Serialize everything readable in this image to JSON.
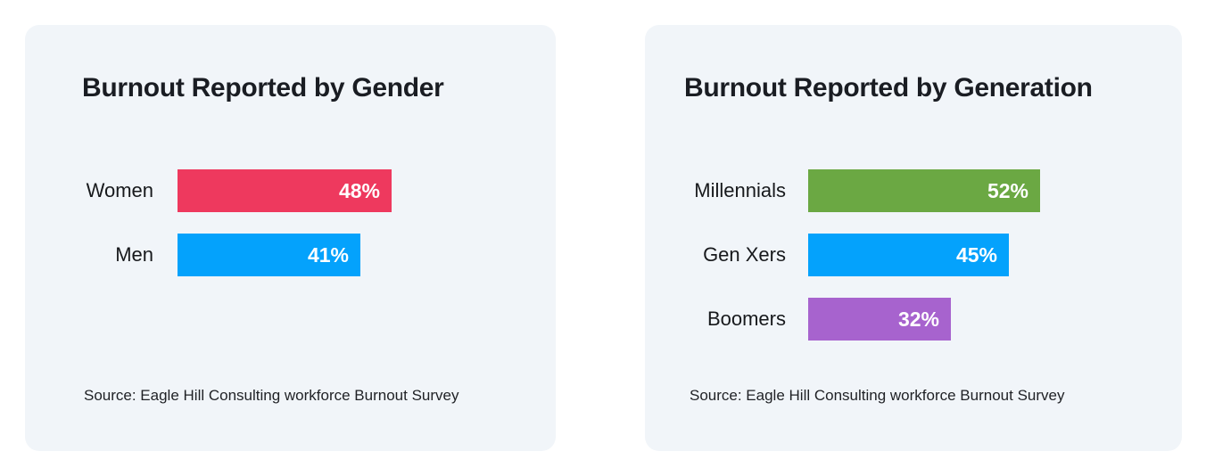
{
  "page": {
    "background": "#FFFFFF",
    "card_background": "#F1F5F9",
    "title_color": "#1A1D23",
    "label_color": "#17191C",
    "value_text_color": "#FFFFFF"
  },
  "chart_data": [
    {
      "type": "bar",
      "orientation": "horizontal",
      "title": "Burnout Reported by Gender",
      "categories": [
        "Women",
        "Men"
      ],
      "values": [
        48,
        41
      ],
      "value_labels": [
        "48%",
        "41%"
      ],
      "bar_colors": [
        "#EE395E",
        "#04A2FC"
      ],
      "xlim": [
        0,
        100
      ],
      "unit": "percent",
      "grid": false,
      "legend": "none",
      "value_label_position": "inside-end",
      "source": "Source: Eagle Hill Consulting workforce Burnout Survey"
    },
    {
      "type": "bar",
      "orientation": "horizontal",
      "title": "Burnout Reported by Generation",
      "categories": [
        "Millennials",
        "Gen Xers",
        "Boomers"
      ],
      "values": [
        52,
        45,
        32
      ],
      "value_labels": [
        "52%",
        "45%",
        "32%"
      ],
      "bar_colors": [
        "#6BA843",
        "#04A2FC",
        "#A763CE"
      ],
      "xlim": [
        0,
        100
      ],
      "unit": "percent",
      "grid": false,
      "legend": "none",
      "value_label_position": "inside-end",
      "source": "Source: Eagle Hill Consulting workforce Burnout Survey"
    }
  ]
}
